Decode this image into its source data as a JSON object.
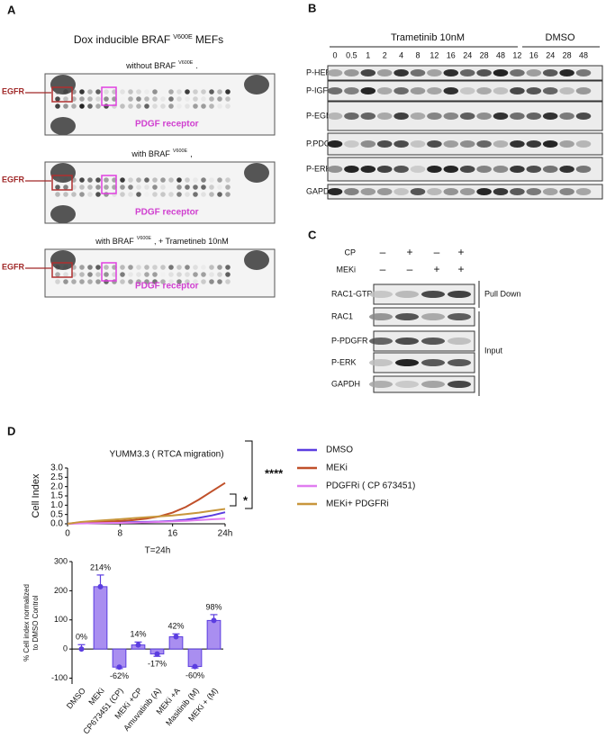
{
  "panel_a": {
    "letter": "A",
    "title": {
      "pre": "Dox inducible BRAF",
      "sup": "V600E",
      "post": "MEFs"
    },
    "blots": [
      {
        "title": {
          "pre": "without BRAF",
          "sup": "V600E",
          "post": "."
        },
        "egfr": "EGFR",
        "pdgf": "PDGF receptor"
      },
      {
        "title": {
          "pre": "with BRAF",
          "sup": "V600E",
          "post": ","
        },
        "egfr": "EGFR",
        "pdgf": "PDGF receptor"
      },
      {
        "title": {
          "pre": "with BRAF",
          "sup": "V600E",
          "post": ", + Trametineb 10nM"
        },
        "egfr": "EGFR",
        "pdgf": "PDGF receptor"
      }
    ]
  },
  "panel_b": {
    "letter": "B",
    "group1": "Trametinib 10nM",
    "group2": "DMSO",
    "lanes": [
      "0",
      "0.5",
      "1",
      "2",
      "4",
      "8",
      "12",
      "16",
      "24",
      "28",
      "48",
      "12",
      "16",
      "24",
      "28",
      "48"
    ],
    "rows": [
      "P-HER3",
      "P-IGFR1",
      "P-EGFR",
      "P.PDGFR",
      "P-ERK",
      "GAPDH"
    ]
  },
  "panel_c": {
    "letter": "C",
    "conditions": [
      {
        "name": "CP",
        "signs": [
          "–",
          "+",
          "–",
          "+"
        ]
      },
      {
        "name": "MEKi",
        "signs": [
          "–",
          "–",
          "+",
          "+"
        ]
      }
    ],
    "rows": [
      "RAC1-GTP",
      "RAC1",
      "P-PDGFR",
      "P-ERK",
      "GAPDH"
    ],
    "groups": [
      "Pull Down",
      "Input"
    ]
  },
  "panel_d": {
    "letter": "D"
  },
  "chart_data": [
    {
      "type": "line",
      "title": "YUMM3.3 ( RTCA migration)",
      "ylabel": "Cell Index",
      "x": [
        0,
        2,
        4,
        6,
        8,
        10,
        12,
        14,
        16,
        18,
        20,
        22,
        24
      ],
      "xlim": [
        0,
        24
      ],
      "xticks": [
        0,
        8,
        16,
        {
          "value": 24,
          "label": "24h"
        }
      ],
      "ylim": [
        0,
        3
      ],
      "yticks": [
        {
          "value": 0,
          "label": "0.0"
        },
        0.5,
        {
          "value": 1,
          "label": "1.0"
        },
        1.5,
        {
          "value": 2,
          "label": "2.0"
        },
        2.5,
        {
          "value": 3,
          "label": "3.0"
        }
      ],
      "series": [
        {
          "name": "DMSO",
          "color": "#5b3de0",
          "values": [
            0,
            0.04,
            0.06,
            0.07,
            0.08,
            0.09,
            0.1,
            0.12,
            0.16,
            0.22,
            0.32,
            0.45,
            0.62
          ]
        },
        {
          "name": "MEKi",
          "color": "#c0502a",
          "values": [
            0,
            0.08,
            0.1,
            0.12,
            0.15,
            0.2,
            0.28,
            0.4,
            0.6,
            0.9,
            1.3,
            1.75,
            2.2
          ]
        },
        {
          "name": "PDGFRi ( CP 673451)",
          "color": "#e07cf0",
          "values": [
            0,
            0.02,
            0.03,
            0.04,
            0.05,
            0.06,
            0.08,
            0.1,
            0.13,
            0.16,
            0.2,
            0.24,
            0.28
          ]
        },
        {
          "name": "MEKi+ PDGFRi",
          "color": "#c8963c",
          "values": [
            0,
            0.1,
            0.15,
            0.2,
            0.25,
            0.3,
            0.35,
            0.4,
            0.45,
            0.52,
            0.6,
            0.7,
            0.8
          ]
        }
      ],
      "annotations": [
        "****",
        "*"
      ]
    },
    {
      "type": "bar",
      "title": "T=24h",
      "ylabel": [
        "% Cell index normalized",
        "to DMSO Control"
      ],
      "categories": [
        "DMSO",
        "MEKi",
        "CP673451 (CP)",
        "MEKi +CP",
        "Amuvatinib (A)",
        "MEKi +A",
        "Masitinib (M)",
        "MEKi + (M)"
      ],
      "values": [
        0,
        214,
        -62,
        14,
        -17,
        42,
        -60,
        98
      ],
      "value_labels": [
        "0%",
        "214%",
        "-62%",
        "14%",
        "-17%",
        "42%",
        "-60%",
        "98%"
      ],
      "errors": [
        15,
        40,
        5,
        10,
        8,
        10,
        5,
        20
      ],
      "color": "#a98ef0",
      "edge_color": "#5b3de0",
      "ylim": [
        -120,
        300
      ],
      "yticks": [
        -100,
        0,
        100,
        200,
        300
      ]
    }
  ]
}
